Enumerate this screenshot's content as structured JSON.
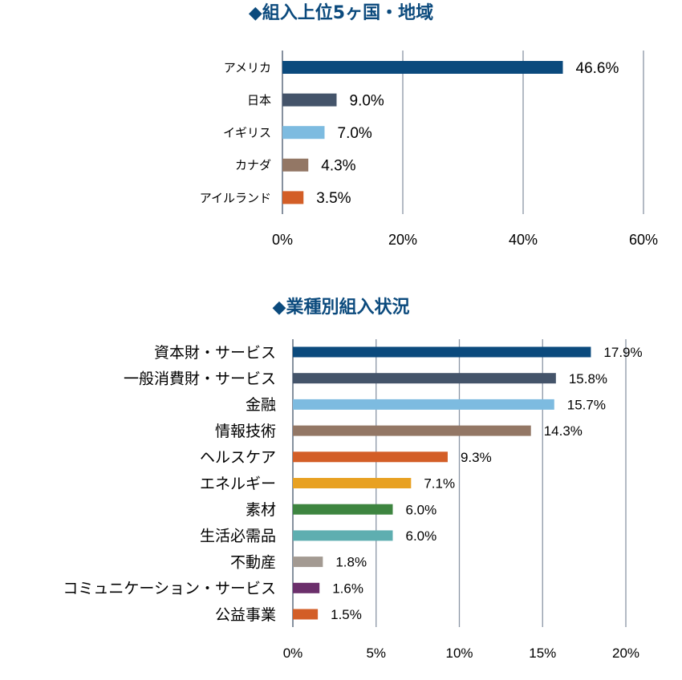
{
  "chart_data": [
    {
      "type": "bar",
      "orientation": "horizontal",
      "title": "◆組入上位5ヶ国・地域",
      "categories": [
        "アメリカ",
        "日本",
        "イギリス",
        "カナダ",
        "アイルランド"
      ],
      "values": [
        46.6,
        9.0,
        7.0,
        4.3,
        3.5
      ],
      "value_labels": [
        "46.6%",
        "9.0%",
        "7.0%",
        "4.3%",
        "3.5%"
      ],
      "colors": [
        "#0b4a7d",
        "#44546a",
        "#7dbbe0",
        "#937765",
        "#d35e27"
      ],
      "xlim": [
        0,
        60
      ],
      "xticks": [
        0,
        20,
        40,
        60
      ],
      "xtick_labels": [
        "0%",
        "20%",
        "40%",
        "60%"
      ],
      "grid": "vertical",
      "xlabel": "",
      "ylabel": ""
    },
    {
      "type": "bar",
      "orientation": "horizontal",
      "title": "◆業種別組入状況",
      "categories": [
        "資本財・サービス",
        "一般消費財・サービス",
        "金融",
        "情報技術",
        "ヘルスケア",
        "エネルギー",
        "素材",
        "生活必需品",
        "不動産",
        "コミュニケーション・サービス",
        "公益事業"
      ],
      "values": [
        17.9,
        15.8,
        15.7,
        14.3,
        9.3,
        7.1,
        6.0,
        6.0,
        1.8,
        1.6,
        1.5
      ],
      "value_labels": [
        "17.9%",
        "15.8%",
        "15.7%",
        "14.3%",
        "9.3%",
        "7.1%",
        "6.0%",
        "6.0%",
        "1.8%",
        "1.6%",
        "1.5%"
      ],
      "colors": [
        "#0b4a7d",
        "#44546a",
        "#7dbbe0",
        "#937765",
        "#d35e27",
        "#e8a122",
        "#3e8540",
        "#5eaeb0",
        "#a39a92",
        "#6b2f6b",
        "#d35e27"
      ],
      "xlim": [
        0,
        20
      ],
      "xticks": [
        0,
        5,
        10,
        15,
        20
      ],
      "xtick_labels": [
        "0%",
        "5%",
        "10%",
        "15%",
        "20%"
      ],
      "grid": "vertical",
      "xlabel": "",
      "ylabel": ""
    }
  ]
}
